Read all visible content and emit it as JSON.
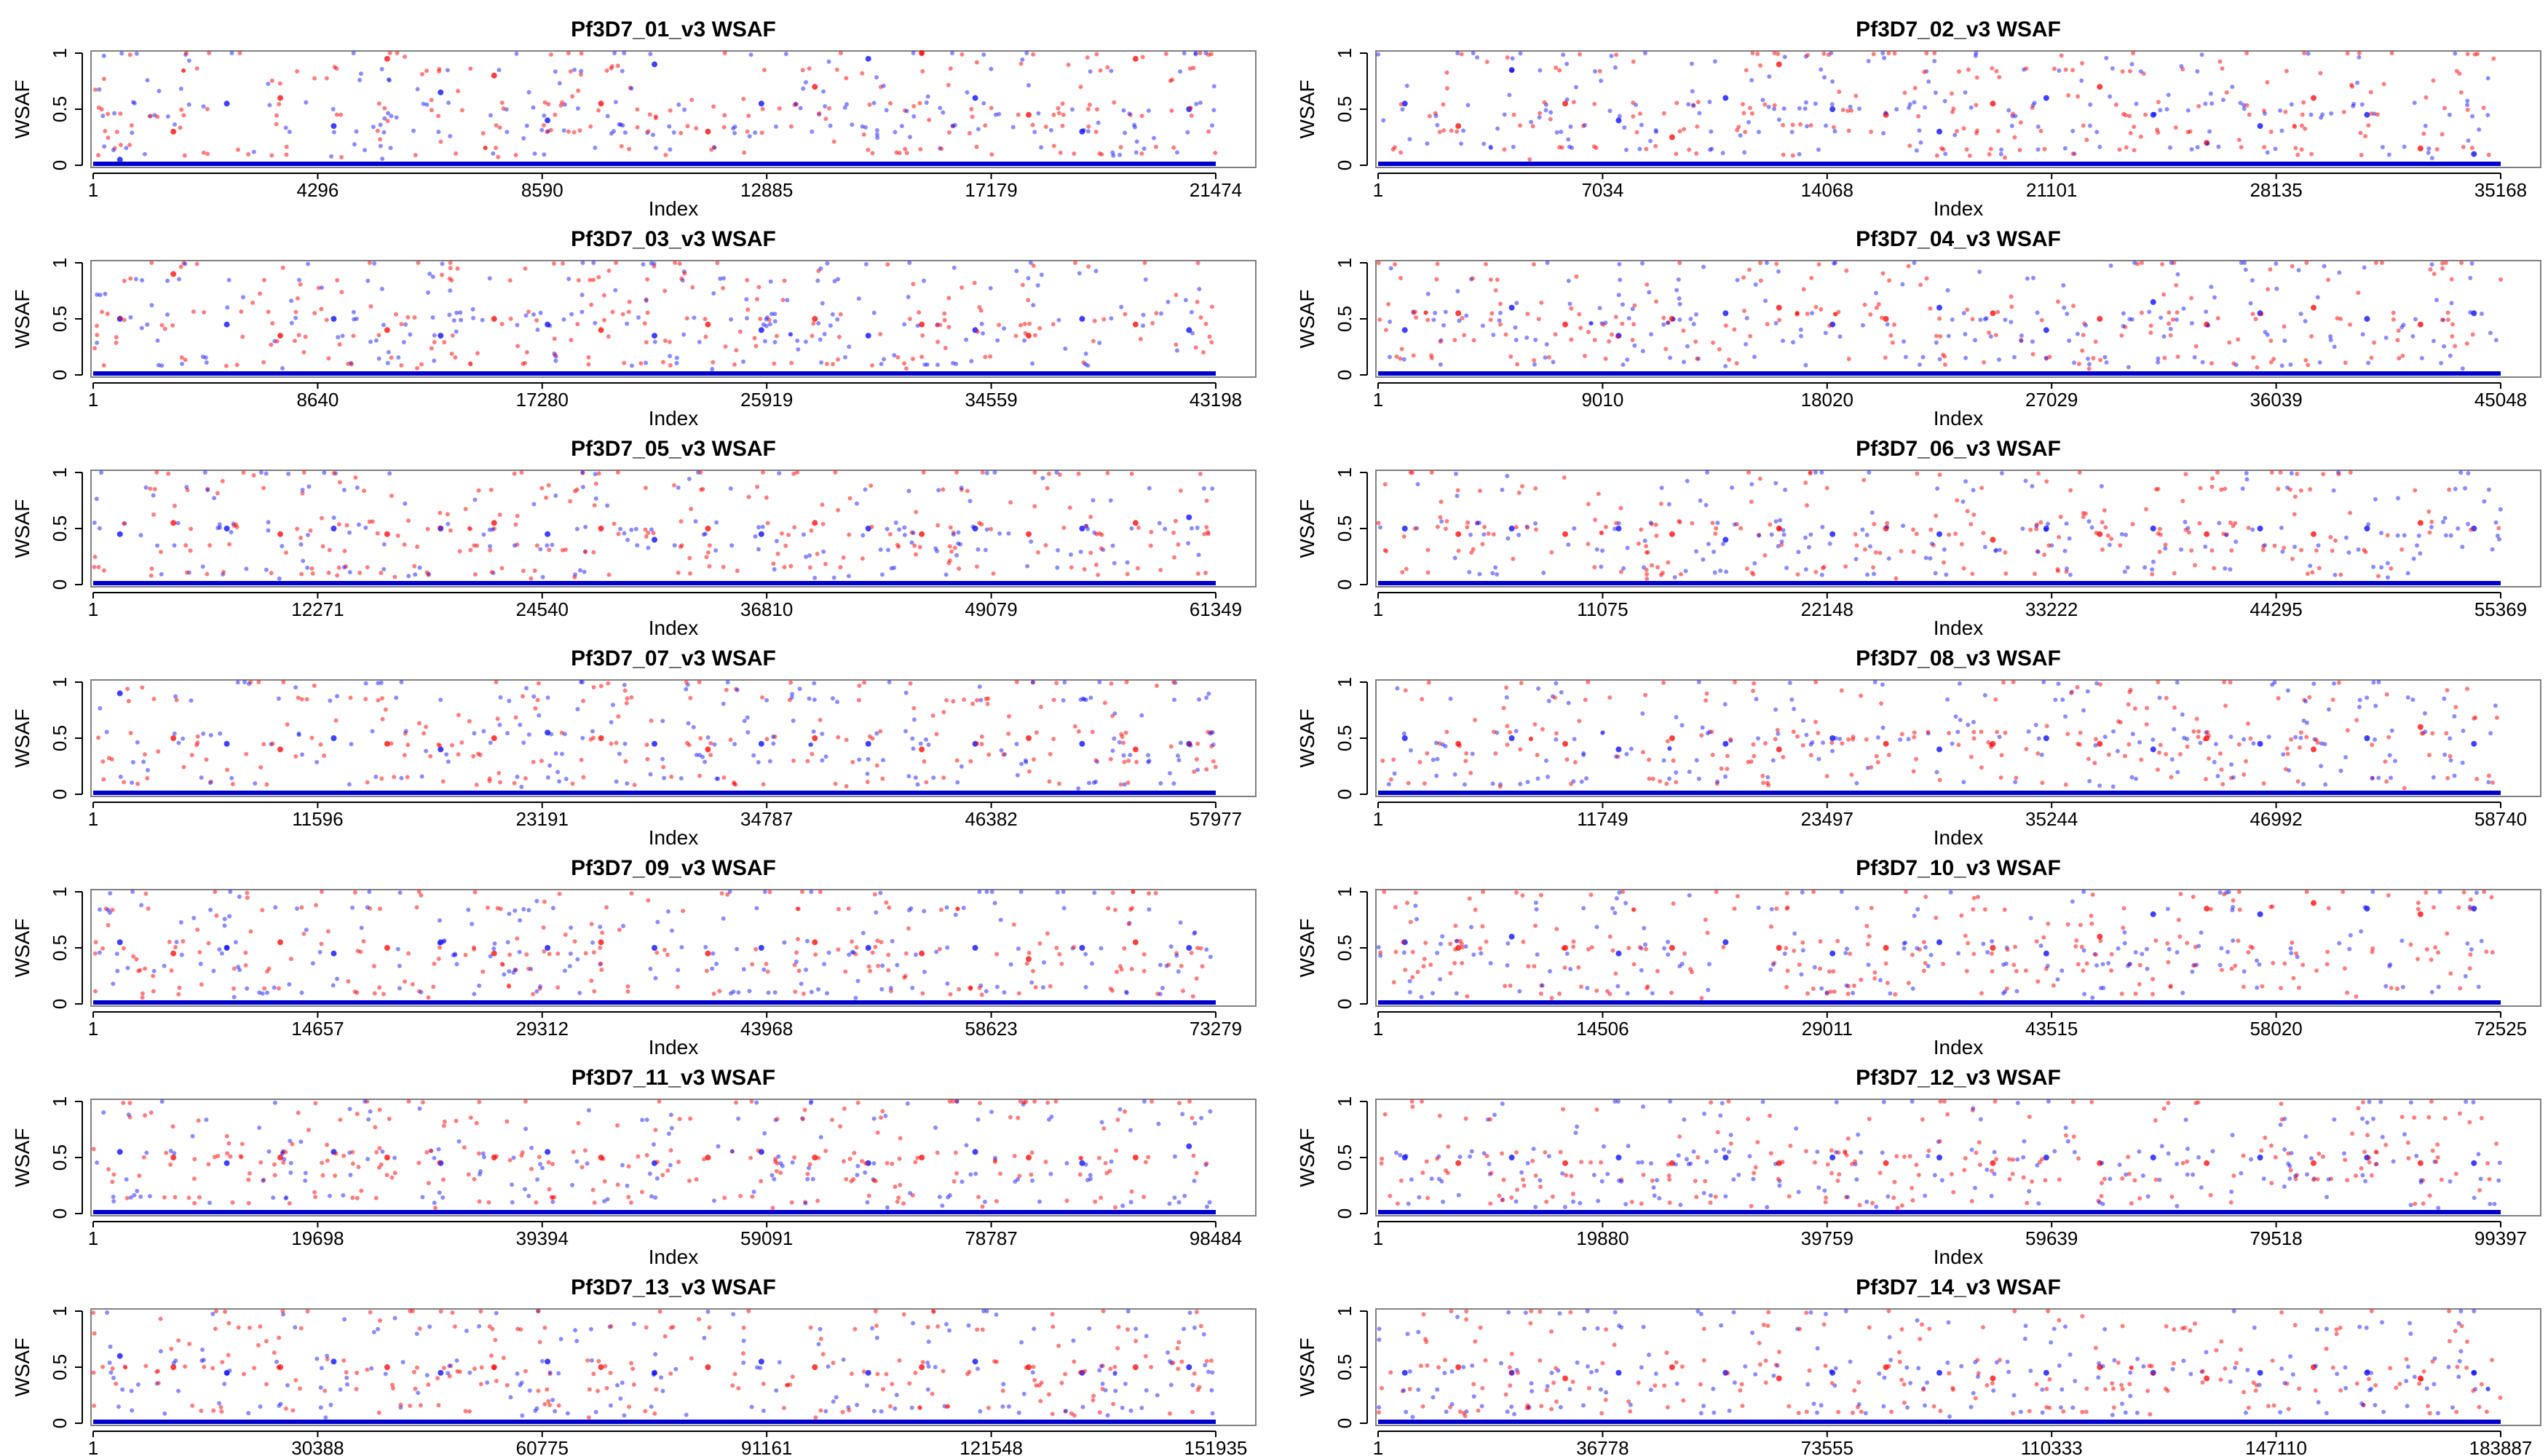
{
  "colors": {
    "series_a": "#0000ff",
    "series_b": "#ff0000",
    "baseline": "#0000cc",
    "frame": "#808080",
    "background": "#ffffff"
  },
  "chart_data": [
    {
      "type": "scatter",
      "title": "Pf3D7_01_v3 WSAF",
      "xlabel": "Index",
      "ylabel": "WSAF",
      "xlim": [
        1,
        21474
      ],
      "ylim": [
        0,
        1
      ],
      "xticks": [
        1,
        4296,
        8590,
        12885,
        17179,
        21474
      ],
      "xtick_labels": [
        "1",
        "4296",
        "8590",
        "12885",
        "17179",
        "21474"
      ],
      "yticks": [
        0,
        0.5,
        1
      ],
      "ytick_labels": [
        "0",
        "0.5",
        "1"
      ],
      "series": [
        {
          "values": [
            0.05,
            0.3,
            0.55,
            0.6,
            0.35,
            0.95,
            0.65,
            0.8,
            0.4,
            0.55,
            0.9,
            0.3,
            0.55,
            0.7,
            0.95,
            1.0,
            0.6,
            0.45,
            0.3,
            0.95,
            0.5
          ]
        }
      ]
    },
    {
      "type": "scatter",
      "title": "Pf3D7_02_v3 WSAF",
      "xlabel": "Index",
      "ylabel": "WSAF",
      "xlim": [
        1,
        35168
      ],
      "ylim": [
        0,
        1
      ],
      "xticks": [
        1,
        7034,
        14068,
        21101,
        28135,
        35168
      ],
      "xtick_labels": [
        "1",
        "7034",
        "14068",
        "21101",
        "28135",
        "35168"
      ],
      "yticks": [
        0,
        0.5,
        1
      ],
      "ytick_labels": [
        "0",
        "0.5",
        "1"
      ],
      "series": [
        {
          "values": [
            0.55,
            0.35,
            0.85,
            0.55,
            0.4,
            0.25,
            0.6,
            0.9,
            0.5,
            0.45,
            0.3,
            0.55,
            0.6,
            0.7,
            0.45,
            0.2,
            0.35,
            0.6,
            0.45,
            0.15,
            0.1
          ]
        }
      ]
    },
    {
      "type": "scatter",
      "title": "Pf3D7_03_v3 WSAF",
      "xlabel": "Index",
      "ylabel": "WSAF",
      "xlim": [
        1,
        43198
      ],
      "ylim": [
        0,
        1
      ],
      "xticks": [
        1,
        8640,
        17280,
        25919,
        34559,
        43198
      ],
      "xtick_labels": [
        "1",
        "8640",
        "17280",
        "25919",
        "34559",
        "43198"
      ],
      "yticks": [
        0,
        0.5,
        1
      ],
      "ytick_labels": [
        "0",
        "0.5",
        "1"
      ],
      "series": [
        {
          "values": [
            0.5,
            0.9,
            0.45,
            0.35,
            0.5,
            0.4,
            0.35,
            0.5,
            0.45,
            0.4,
            0.35,
            0.45,
            0.4,
            0.5,
            0.35,
            0.45,
            0.4,
            0.35,
            0.5,
            0.45,
            0.4
          ]
        }
      ]
    },
    {
      "type": "scatter",
      "title": "Pf3D7_04_v3 WSAF",
      "xlabel": "Index",
      "ylabel": "WSAF",
      "xlim": [
        1,
        45048
      ],
      "ylim": [
        0,
        1
      ],
      "xticks": [
        1,
        9010,
        18020,
        27029,
        36039,
        45048
      ],
      "xtick_labels": [
        "1",
        "9010",
        "18020",
        "27029",
        "36039",
        "45048"
      ],
      "yticks": [
        0,
        0.5,
        1
      ],
      "ytick_labels": [
        "0",
        "0.5",
        "1"
      ],
      "series": [
        {
          "values": [
            0.4,
            0.55,
            0.6,
            0.45,
            0.35,
            0.5,
            0.55,
            0.6,
            0.45,
            0.5,
            0.6,
            0.55,
            0.4,
            0.5,
            0.65,
            0.45,
            0.55,
            0.6,
            0.5,
            0.45,
            0.55
          ]
        }
      ]
    },
    {
      "type": "scatter",
      "title": "Pf3D7_05_v3 WSAF",
      "xlabel": "Index",
      "ylabel": "WSAF",
      "xlim": [
        1,
        61349
      ],
      "ylim": [
        0,
        1
      ],
      "xticks": [
        1,
        12271,
        24540,
        36810,
        49079,
        61349
      ],
      "xtick_labels": [
        "1",
        "12271",
        "24540",
        "36810",
        "49079",
        "61349"
      ],
      "yticks": [
        0,
        0.5,
        1
      ],
      "ytick_labels": [
        "0",
        "0.5",
        "1"
      ],
      "series": [
        {
          "values": [
            0.45,
            0.55,
            0.5,
            0.45,
            0.5,
            0.45,
            0.5,
            0.55,
            0.45,
            0.5,
            0.4,
            0.5,
            0.45,
            0.55,
            0.5,
            0.45,
            0.5,
            0.45,
            0.5,
            0.55,
            0.6
          ]
        }
      ]
    },
    {
      "type": "scatter",
      "title": "Pf3D7_06_v3 WSAF",
      "xlabel": "Index",
      "ylabel": "WSAF",
      "xlim": [
        1,
        55369
      ],
      "ylim": [
        0,
        1
      ],
      "xticks": [
        1,
        11075,
        22148,
        33222,
        44295,
        55369
      ],
      "xtick_labels": [
        "1",
        "11075",
        "22148",
        "33222",
        "44295",
        "55369"
      ],
      "yticks": [
        0,
        0.5,
        1
      ],
      "ytick_labels": [
        "0",
        "0.5",
        "1"
      ],
      "series": [
        {
          "values": [
            0.5,
            0.45,
            0.5,
            0.45,
            0.5,
            0.45,
            0.4,
            0.5,
            0.45,
            0.5,
            0.45,
            0.4,
            0.5,
            0.45,
            0.5,
            0.45,
            0.5,
            0.45,
            0.5,
            0.55,
            0.5
          ]
        }
      ]
    },
    {
      "type": "scatter",
      "title": "Pf3D7_07_v3 WSAF",
      "xlabel": "Index",
      "ylabel": "WSAF",
      "xlim": [
        1,
        57977
      ],
      "ylim": [
        0,
        1
      ],
      "xticks": [
        1,
        11596,
        23191,
        34787,
        46382,
        57977
      ],
      "xtick_labels": [
        "1",
        "11596",
        "23191",
        "34787",
        "46382",
        "57977"
      ],
      "yticks": [
        0,
        0.5,
        1
      ],
      "ytick_labels": [
        "0",
        "0.5",
        "1"
      ],
      "series": [
        {
          "values": [
            0.9,
            0.5,
            0.45,
            0.4,
            0.5,
            0.45,
            0.4,
            0.5,
            0.55,
            0.5,
            0.45,
            0.4,
            0.45,
            0.5,
            0.45,
            0.4,
            0.45,
            0.5,
            0.45,
            0.4,
            0.45
          ]
        }
      ]
    },
    {
      "type": "scatter",
      "title": "Pf3D7_08_v3 WSAF",
      "xlabel": "Index",
      "ylabel": "WSAF",
      "xlim": [
        1,
        58740
      ],
      "ylim": [
        0,
        1
      ],
      "xticks": [
        1,
        11749,
        23497,
        35244,
        46992,
        58740
      ],
      "xtick_labels": [
        "1",
        "11749",
        "23497",
        "35244",
        "46992",
        "58740"
      ],
      "yticks": [
        0,
        0.5,
        1
      ],
      "ytick_labels": [
        "0",
        "0.5",
        "1"
      ],
      "series": [
        {
          "values": [
            0.5,
            0.45,
            0.5,
            0.45,
            0.4,
            0.5,
            0.45,
            0.4,
            0.5,
            0.45,
            0.4,
            0.45,
            0.5,
            0.45,
            0.4,
            0.5,
            0.45,
            0.4,
            0.5,
            0.6,
            0.45
          ]
        }
      ]
    },
    {
      "type": "scatter",
      "title": "Pf3D7_09_v3 WSAF",
      "xlabel": "Index",
      "ylabel": "WSAF",
      "xlim": [
        1,
        73279
      ],
      "ylim": [
        0,
        1
      ],
      "xticks": [
        1,
        14657,
        29312,
        43968,
        58623,
        73279
      ],
      "xtick_labels": [
        "1",
        "14657",
        "29312",
        "43968",
        "58623",
        "73279"
      ],
      "yticks": [
        0,
        0.5,
        1
      ],
      "ytick_labels": [
        "0",
        "0.5",
        "1"
      ],
      "series": [
        {
          "values": [
            0.55,
            0.45,
            0.5,
            0.55,
            0.45,
            0.5,
            0.55,
            0.45,
            0.5,
            0.55,
            0.5,
            0.45,
            0.5,
            0.55,
            0.5,
            0.45,
            0.5,
            0.4,
            0.5,
            0.55,
            0.5
          ]
        }
      ]
    },
    {
      "type": "scatter",
      "title": "Pf3D7_10_v3 WSAF",
      "xlabel": "Index",
      "ylabel": "WSAF",
      "xlim": [
        1,
        72525
      ],
      "ylim": [
        0,
        1
      ],
      "xticks": [
        1,
        14506,
        29011,
        43515,
        58020,
        72525
      ],
      "xtick_labels": [
        "1",
        "14506",
        "29011",
        "43515",
        "58020",
        "72525"
      ],
      "yticks": [
        0,
        0.5,
        1
      ],
      "ytick_labels": [
        "0",
        "0.5",
        "1"
      ],
      "series": [
        {
          "values": [
            0.55,
            0.5,
            0.6,
            0.5,
            0.45,
            0.5,
            0.55,
            0.5,
            0.45,
            0.5,
            0.55,
            0.5,
            0.45,
            0.6,
            0.8,
            0.85,
            0.8,
            0.9,
            0.85,
            0.8,
            0.85
          ]
        }
      ]
    },
    {
      "type": "scatter",
      "title": "Pf3D7_11_v3 WSAF",
      "xlabel": "Index",
      "ylabel": "WSAF",
      "xlim": [
        1,
        98484
      ],
      "ylim": [
        0,
        1
      ],
      "xticks": [
        1,
        19698,
        39394,
        59091,
        78787,
        98484
      ],
      "xtick_labels": [
        "1",
        "19698",
        "39394",
        "59091",
        "78787",
        "98484"
      ],
      "yticks": [
        0,
        0.5,
        1
      ],
      "ytick_labels": [
        "0",
        "0.5",
        "1"
      ],
      "series": [
        {
          "values": [
            0.55,
            0.5,
            0.45,
            0.5,
            0.55,
            0.5,
            0.45,
            0.5,
            0.55,
            0.5,
            0.45,
            0.5,
            0.55,
            0.5,
            0.45,
            0.5,
            0.55,
            0.5,
            0.45,
            0.5,
            0.6
          ]
        }
      ]
    },
    {
      "type": "scatter",
      "title": "Pf3D7_12_v3 WSAF",
      "xlabel": "Index",
      "ylabel": "WSAF",
      "xlim": [
        1,
        99397
      ],
      "ylim": [
        0,
        1
      ],
      "xticks": [
        1,
        19880,
        39759,
        59639,
        79518,
        99397
      ],
      "xtick_labels": [
        "1",
        "19880",
        "39759",
        "59639",
        "79518",
        "99397"
      ],
      "yticks": [
        0,
        0.5,
        1
      ],
      "ytick_labels": [
        "0",
        "0.5",
        "1"
      ],
      "series": [
        {
          "values": [
            0.5,
            0.45,
            0.5,
            0.45,
            0.5,
            0.45,
            0.5,
            0.45,
            0.5,
            0.45,
            0.5,
            0.45,
            0.5,
            0.45,
            0.5,
            0.45,
            0.5,
            0.45,
            0.5,
            0.45,
            0.45
          ]
        }
      ]
    },
    {
      "type": "scatter",
      "title": "Pf3D7_13_v3 WSAF",
      "xlabel": "Index",
      "ylabel": "WSAF",
      "xlim": [
        1,
        151935
      ],
      "ylim": [
        0,
        1
      ],
      "xticks": [
        1,
        30388,
        60775,
        91161,
        121548,
        151935
      ],
      "xtick_labels": [
        "1",
        "30388",
        "60775",
        "91161",
        "121548",
        "151935"
      ],
      "yticks": [
        0,
        0.5,
        1
      ],
      "ytick_labels": [
        "0",
        "0.5",
        "1"
      ],
      "series": [
        {
          "values": [
            0.6,
            0.5,
            0.45,
            0.5,
            0.55,
            0.5,
            0.45,
            0.5,
            0.55,
            0.5,
            0.45,
            0.5,
            0.55,
            0.5,
            0.45,
            0.5,
            0.55,
            0.5,
            0.45,
            0.5,
            0.5
          ]
        }
      ]
    },
    {
      "type": "scatter",
      "title": "Pf3D7_14_v3 WSAF",
      "xlabel": "Index",
      "ylabel": "WSAF",
      "xlim": [
        1,
        183887
      ],
      "ylim": [
        0,
        1
      ],
      "xticks": [
        1,
        36778,
        73555,
        110333,
        147110,
        183887
      ],
      "xtick_labels": [
        "1",
        "36778",
        "73555",
        "110333",
        "147110",
        "183887"
      ],
      "yticks": [
        0,
        0.5,
        1
      ],
      "ytick_labels": [
        "0",
        "0.5",
        "1"
      ],
      "series": [
        {
          "values": [
            0.45,
            0.5,
            0.45,
            0.4,
            0.45,
            0.5,
            0.45,
            0.4,
            0.45,
            0.5,
            0.45,
            0.4,
            0.45,
            0.5,
            0.45,
            0.4,
            0.45,
            0.5,
            0.45,
            0.4,
            0.45
          ]
        }
      ]
    }
  ]
}
